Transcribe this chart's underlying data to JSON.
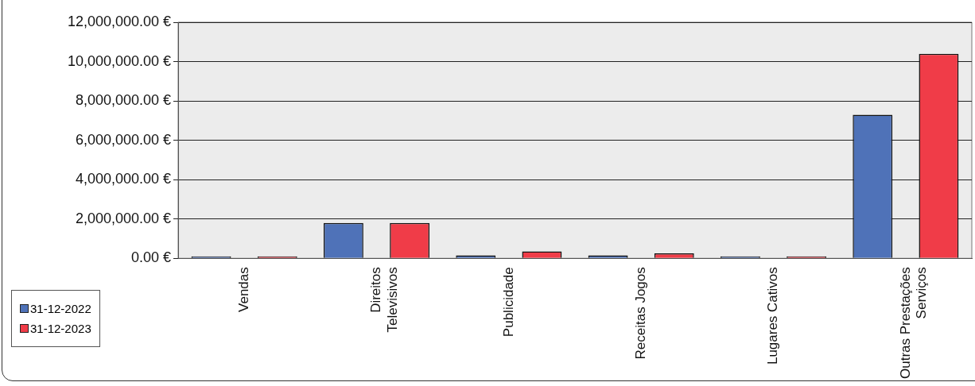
{
  "chart_data": {
    "type": "bar",
    "categories": [
      "Vendas",
      "Direitos\nTelevisivos",
      "Publicidade",
      "Receitas Jogos",
      "Lugares Cativos",
      "Outras Prestações\nServiços"
    ],
    "series": [
      {
        "name": "31-12-2022",
        "color": "#4f72b8",
        "values": [
          100000,
          1800000,
          150000,
          150000,
          100000,
          7300000
        ]
      },
      {
        "name": "31-12-2023",
        "color": "#f03c48",
        "values": [
          100000,
          1800000,
          350000,
          250000,
          100000,
          10400000
        ]
      }
    ],
    "ylim": [
      0,
      12000000
    ],
    "yticks": [
      {
        "value": 0,
        "label": "0.00 €"
      },
      {
        "value": 2000000,
        "label": "2,000,000.00 €"
      },
      {
        "value": 4000000,
        "label": "4,000,000.00 €"
      },
      {
        "value": 6000000,
        "label": "6,000,000.00 €"
      },
      {
        "value": 8000000,
        "label": "8,000,000.00 €"
      },
      {
        "value": 10000000,
        "label": "10,000,000.00 €"
      },
      {
        "value": 12000000,
        "label": "12,000,000.00 €"
      }
    ],
    "grid": "y",
    "legend": "bottom left"
  }
}
